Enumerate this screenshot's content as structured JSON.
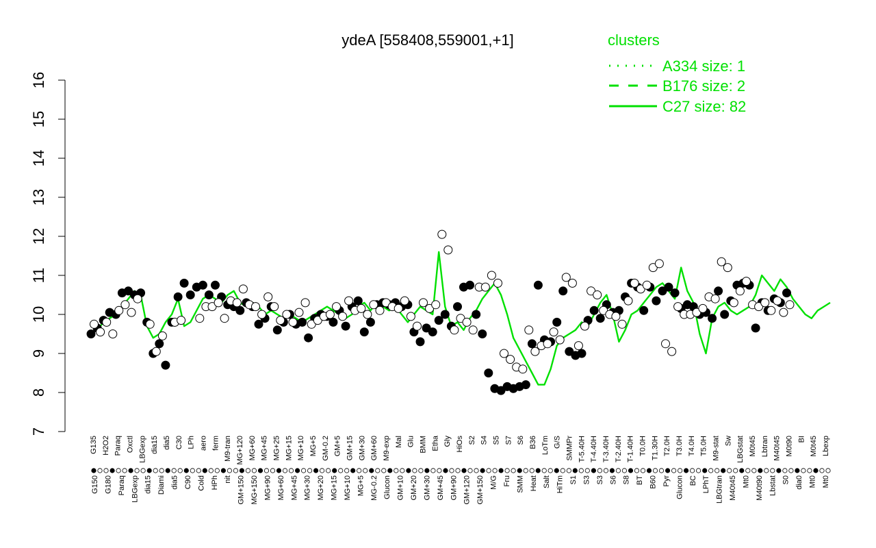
{
  "colors": {
    "cluster": "#00e000",
    "axis": "#000000",
    "point_fill_open": "#ffffff",
    "point_fill_solid": "#000000"
  },
  "chart_data": {
    "type": "line",
    "title": "ydeA [558408,559001,+1]",
    "xlabel": "",
    "ylabel": "",
    "ylim": [
      7,
      16
    ],
    "yticks": [
      7,
      8,
      9,
      10,
      11,
      12,
      13,
      14,
      15,
      16
    ],
    "grid": false,
    "legend": {
      "title": "clusters",
      "position": "top-right",
      "entries": [
        {
          "label": "A334 size: 1",
          "style": "dotted"
        },
        {
          "label": "B176 size: 2",
          "style": "dashed"
        },
        {
          "label": "C27 size: 82",
          "style": "solid"
        }
      ]
    },
    "top_labels": [
      "G135",
      "H2O2",
      "Paraq",
      "Oxctl",
      "LBGexp",
      "dia15",
      "dia5",
      "C30",
      "LPh",
      "aero",
      "ferm",
      "M9-tran",
      "MG+120",
      "MG+60",
      "MG+45",
      "MG+25",
      "MG+15",
      "MG+10",
      "MG+5",
      "GM-0.2",
      "GM+5",
      "GM+15",
      "GM+30",
      "GM+60",
      "M9-exp",
      "Mal",
      "Glu",
      "BMM",
      "Etha",
      "Gly",
      "HiOs",
      "S2",
      "S4",
      "S5",
      "S7",
      "S6",
      "B36",
      "LoTm",
      "G/S",
      "SMMPr",
      "T-5.40H",
      "T-4.40H",
      "T-3.40H",
      "T-2.40H",
      "T-1.40H",
      "T0.0H",
      "T1.30H",
      "T2.0H",
      "T3.0H",
      "T4.0H",
      "T5.0H",
      "M9-stat",
      "Sw",
      "LBGstat",
      "M0t45",
      "Lbtran",
      "M40t45",
      "M0t90",
      "BI",
      "M0t45",
      "Lbexp"
    ],
    "bottom_labels": [
      "G150",
      "G180",
      "Paraq",
      "LBGexp",
      "dia15",
      "Diami",
      "dia5",
      "C90",
      "Cold",
      "HPh",
      "nit",
      "GM+150",
      "MG+150",
      "MG+90",
      "MG+60",
      "MG+45",
      "MG+30",
      "MG+20",
      "MG+15",
      "MG+10",
      "MG+5",
      "MG-0.2",
      "Glucon",
      "GM+10",
      "GM+20",
      "GM+30",
      "GM+45",
      "GM+90",
      "GM+120",
      "GM+150",
      "M/G",
      "Fru",
      "SMM",
      "Heat",
      "Salt",
      "HiTm",
      "S1",
      "S3",
      "S3",
      "S6",
      "S8",
      "BT",
      "B60",
      "Pyr",
      "Glucon",
      "BC",
      "LPhT",
      "LBGtran",
      "M40t45",
      "Mt0",
      "M40t90",
      "Lbstat",
      "S0",
      "dia0",
      "Mt0",
      "Mt0"
    ],
    "series": [
      {
        "style": "solid",
        "x": [
          1,
          3,
          5,
          7,
          9,
          11,
          13,
          15,
          17,
          19,
          21,
          23,
          25,
          27,
          29,
          31,
          33,
          35,
          37,
          39,
          41,
          43,
          45,
          47,
          49,
          51,
          53,
          55,
          57,
          59,
          61,
          63,
          65,
          67,
          69,
          71,
          73,
          75,
          77,
          79,
          81,
          83,
          85,
          87,
          89,
          91,
          93,
          95,
          97,
          99,
          101,
          103,
          105,
          107,
          109,
          111,
          113,
          115,
          117,
          119,
          121,
          123,
          125,
          127,
          129,
          131,
          133,
          135,
          137,
          139,
          141,
          143,
          145,
          147,
          149,
          151,
          153,
          155,
          157,
          159,
          161,
          163,
          165,
          167,
          169,
          171,
          173,
          175,
          177,
          179,
          181,
          183,
          185,
          187,
          189,
          191,
          193,
          195,
          197,
          199,
          201,
          203,
          205,
          207,
          209,
          211,
          213,
          215,
          217,
          219,
          221,
          223,
          225,
          227,
          229,
          231,
          233,
          235,
          237,
          239
        ],
        "values": [
          9.7,
          9.6,
          9.8,
          9.9,
          10.0,
          10.2,
          10.4,
          10.6,
          10.5,
          9.7,
          9.4,
          9.5,
          9.8,
          10.0,
          10.4,
          9.7,
          9.8,
          10.1,
          10.4,
          10.5,
          10.4,
          10.3,
          10.5,
          10.6,
          10.3,
          10.2,
          10.3,
          10.2,
          10.0,
          10.1,
          10.0,
          9.9,
          10.0,
          9.9,
          9.8,
          9.9,
          10.0,
          10.1,
          10.2,
          10.1,
          10.0,
          9.9,
          10.0,
          10.2,
          10.3,
          10.1,
          10.3,
          10.2,
          10.1,
          10.2,
          10.0,
          9.8,
          10.0,
          10.2,
          10.1,
          10.0,
          11.6,
          10.2,
          9.7,
          9.8,
          9.6,
          9.9,
          10.1,
          10.4,
          10.6,
          10.8,
          10.5,
          10.0,
          9.4,
          9.1,
          8.8,
          8.5,
          8.2,
          8.2,
          8.6,
          9.2,
          9.4,
          9.5,
          9.6,
          9.8,
          9.7,
          10.0,
          10.3,
          10.5,
          10.0,
          9.3,
          9.6,
          10.0,
          10.1,
          10.3,
          10.5,
          10.7,
          10.8,
          10.6,
          10.4,
          11.2,
          10.6,
          10.3,
          9.5,
          9.0,
          9.9,
          10.2,
          10.3,
          10.1,
          10.0,
          10.1,
          10.2,
          10.5,
          11.0,
          10.8,
          10.6,
          10.9,
          10.7,
          10.4,
          10.2,
          10.0,
          9.9,
          10.1,
          10.2,
          10.3
        ]
      }
    ],
    "points": {
      "open": [
        [
          2,
          9.75
        ],
        [
          4,
          9.55
        ],
        [
          6,
          9.8
        ],
        [
          8,
          9.5
        ],
        [
          10,
          10.1
        ],
        [
          12,
          10.25
        ],
        [
          14,
          10.05
        ],
        [
          16,
          10.4
        ],
        [
          20,
          9.75
        ],
        [
          22,
          9.05
        ],
        [
          24,
          9.45
        ],
        [
          28,
          9.8
        ],
        [
          30,
          9.85
        ],
        [
          36,
          9.9
        ],
        [
          38,
          10.2
        ],
        [
          40,
          10.2
        ],
        [
          42,
          10.3
        ],
        [
          44,
          9.9
        ],
        [
          46,
          10.35
        ],
        [
          48,
          10.3
        ],
        [
          50,
          10.65
        ],
        [
          52,
          10.25
        ],
        [
          54,
          10.2
        ],
        [
          56,
          10.0
        ],
        [
          58,
          10.45
        ],
        [
          60,
          10.2
        ],
        [
          62,
          9.85
        ],
        [
          64,
          10.0
        ],
        [
          66,
          9.8
        ],
        [
          68,
          10.05
        ],
        [
          70,
          10.3
        ],
        [
          72,
          9.75
        ],
        [
          74,
          9.85
        ],
        [
          76,
          9.95
        ],
        [
          78,
          10.0
        ],
        [
          80,
          10.2
        ],
        [
          82,
          9.95
        ],
        [
          84,
          10.35
        ],
        [
          86,
          10.1
        ],
        [
          88,
          10.15
        ],
        [
          90,
          10.0
        ],
        [
          92,
          10.25
        ],
        [
          94,
          10.1
        ],
        [
          96,
          10.3
        ],
        [
          98,
          10.2
        ],
        [
          100,
          10.15
        ],
        [
          102,
          10.35
        ],
        [
          104,
          9.95
        ],
        [
          106,
          9.7
        ],
        [
          108,
          10.3
        ],
        [
          110,
          10.15
        ],
        [
          112,
          10.25
        ],
        [
          114,
          12.05
        ],
        [
          116,
          11.65
        ],
        [
          118,
          9.6
        ],
        [
          120,
          9.9
        ],
        [
          122,
          9.8
        ],
        [
          124,
          9.6
        ],
        [
          126,
          10.7
        ],
        [
          128,
          10.7
        ],
        [
          130,
          11.0
        ],
        [
          132,
          10.8
        ],
        [
          134,
          9.0
        ],
        [
          136,
          8.85
        ],
        [
          138,
          8.65
        ],
        [
          140,
          8.6
        ],
        [
          142,
          9.6
        ],
        [
          144,
          9.05
        ],
        [
          146,
          9.2
        ],
        [
          148,
          9.25
        ],
        [
          150,
          9.55
        ],
        [
          152,
          9.35
        ],
        [
          154,
          10.95
        ],
        [
          156,
          10.8
        ],
        [
          158,
          9.2
        ],
        [
          160,
          9.7
        ],
        [
          162,
          10.6
        ],
        [
          164,
          10.5
        ],
        [
          166,
          10.1
        ],
        [
          168,
          10.0
        ],
        [
          170,
          9.95
        ],
        [
          172,
          9.75
        ],
        [
          174,
          10.35
        ],
        [
          176,
          10.8
        ],
        [
          178,
          10.65
        ],
        [
          180,
          10.75
        ],
        [
          182,
          11.2
        ],
        [
          184,
          11.3
        ],
        [
          186,
          9.25
        ],
        [
          188,
          9.05
        ],
        [
          190,
          10.2
        ],
        [
          192,
          10.0
        ],
        [
          194,
          10.0
        ],
        [
          196,
          10.05
        ],
        [
          198,
          10.15
        ],
        [
          200,
          10.45
        ],
        [
          202,
          10.4
        ],
        [
          204,
          11.35
        ],
        [
          206,
          11.2
        ],
        [
          208,
          10.3
        ],
        [
          210,
          10.6
        ],
        [
          212,
          10.85
        ],
        [
          214,
          10.25
        ],
        [
          216,
          10.2
        ],
        [
          218,
          10.3
        ],
        [
          220,
          10.1
        ],
        [
          222,
          10.35
        ],
        [
          224,
          10.05
        ],
        [
          226,
          10.25
        ]
      ],
      "solid": [
        [
          1,
          9.5
        ],
        [
          3,
          9.65
        ],
        [
          5,
          9.85
        ],
        [
          7,
          10.05
        ],
        [
          9,
          10.0
        ],
        [
          11,
          10.55
        ],
        [
          13,
          10.6
        ],
        [
          15,
          10.5
        ],
        [
          17,
          10.55
        ],
        [
          19,
          9.8
        ],
        [
          21,
          9.0
        ],
        [
          23,
          9.25
        ],
        [
          25,
          8.7
        ],
        [
          27,
          9.8
        ],
        [
          29,
          10.45
        ],
        [
          31,
          10.8
        ],
        [
          33,
          10.5
        ],
        [
          35,
          10.7
        ],
        [
          37,
          10.75
        ],
        [
          39,
          10.5
        ],
        [
          41,
          10.75
        ],
        [
          43,
          10.45
        ],
        [
          45,
          10.25
        ],
        [
          47,
          10.2
        ],
        [
          49,
          10.1
        ],
        [
          51,
          10.3
        ],
        [
          53,
          10.2
        ],
        [
          55,
          9.75
        ],
        [
          57,
          9.9
        ],
        [
          59,
          10.2
        ],
        [
          61,
          9.6
        ],
        [
          63,
          9.8
        ],
        [
          65,
          10.0
        ],
        [
          67,
          9.75
        ],
        [
          69,
          9.8
        ],
        [
          71,
          9.4
        ],
        [
          73,
          9.9
        ],
        [
          75,
          10.0
        ],
        [
          77,
          9.95
        ],
        [
          79,
          9.8
        ],
        [
          81,
          10.1
        ],
        [
          83,
          9.7
        ],
        [
          85,
          10.2
        ],
        [
          87,
          10.35
        ],
        [
          89,
          9.55
        ],
        [
          91,
          9.8
        ],
        [
          93,
          10.25
        ],
        [
          95,
          10.3
        ],
        [
          97,
          10.25
        ],
        [
          99,
          10.3
        ],
        [
          101,
          10.2
        ],
        [
          103,
          10.25
        ],
        [
          105,
          9.55
        ],
        [
          107,
          9.3
        ],
        [
          109,
          9.65
        ],
        [
          111,
          9.55
        ],
        [
          113,
          9.85
        ],
        [
          115,
          10.0
        ],
        [
          117,
          9.7
        ],
        [
          119,
          10.2
        ],
        [
          121,
          10.7
        ],
        [
          123,
          10.75
        ],
        [
          125,
          10.0
        ],
        [
          127,
          9.5
        ],
        [
          129,
          8.5
        ],
        [
          131,
          8.1
        ],
        [
          133,
          8.05
        ],
        [
          135,
          8.15
        ],
        [
          137,
          8.1
        ],
        [
          139,
          8.15
        ],
        [
          141,
          8.2
        ],
        [
          143,
          9.25
        ],
        [
          145,
          10.75
        ],
        [
          147,
          9.35
        ],
        [
          149,
          9.3
        ],
        [
          151,
          9.8
        ],
        [
          153,
          10.6
        ],
        [
          155,
          9.05
        ],
        [
          157,
          8.95
        ],
        [
          159,
          9.0
        ],
        [
          161,
          9.85
        ],
        [
          163,
          10.1
        ],
        [
          165,
          9.9
        ],
        [
          167,
          10.25
        ],
        [
          169,
          10.05
        ],
        [
          171,
          10.1
        ],
        [
          173,
          10.45
        ],
        [
          175,
          10.8
        ],
        [
          177,
          10.7
        ],
        [
          179,
          10.1
        ],
        [
          181,
          10.7
        ],
        [
          183,
          10.35
        ],
        [
          185,
          10.6
        ],
        [
          187,
          10.7
        ],
        [
          189,
          10.55
        ],
        [
          191,
          10.15
        ],
        [
          193,
          10.25
        ],
        [
          195,
          10.2
        ],
        [
          197,
          10.0
        ],
        [
          199,
          10.05
        ],
        [
          201,
          9.9
        ],
        [
          203,
          10.6
        ],
        [
          205,
          10.0
        ],
        [
          207,
          10.35
        ],
        [
          209,
          10.75
        ],
        [
          211,
          10.8
        ],
        [
          213,
          10.75
        ],
        [
          215,
          9.65
        ],
        [
          217,
          10.3
        ],
        [
          219,
          10.1
        ],
        [
          221,
          10.4
        ],
        [
          223,
          10.3
        ],
        [
          225,
          10.55
        ]
      ]
    }
  }
}
